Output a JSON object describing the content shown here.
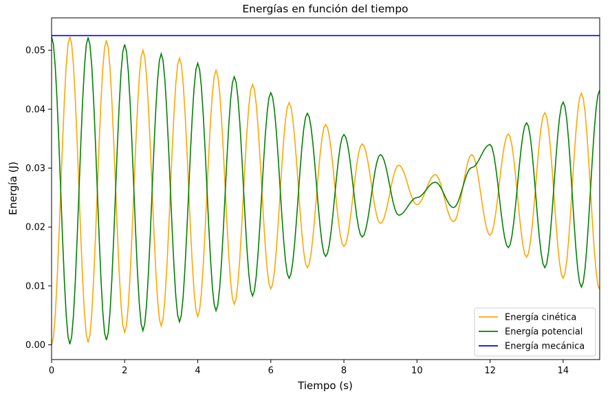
{
  "chart_data": {
    "type": "line",
    "title": "Energías en función del tiempo",
    "xlabel": "Tiempo (s)",
    "ylabel": "Energía (J)",
    "xlim": [
      0,
      15
    ],
    "ylim": [
      -0.0025,
      0.0555
    ],
    "x_ticks": [
      0,
      2,
      4,
      6,
      8,
      10,
      12,
      14
    ],
    "x_tick_labels": [
      "0",
      "2",
      "4",
      "6",
      "8",
      "10",
      "12",
      "14"
    ],
    "y_ticks": [
      0.0,
      0.01,
      0.02,
      0.03,
      0.04,
      0.05
    ],
    "y_tick_labels": [
      "0.00",
      "0.01",
      "0.02",
      "0.03",
      "0.04",
      "0.05"
    ],
    "grid": false,
    "legend_position": "lower-right",
    "x": [
      0,
      0.5,
      1.0,
      1.5,
      2.0,
      2.5,
      3.0,
      3.5,
      4.0,
      4.5,
      5.0,
      5.5,
      6.0,
      6.5,
      7.0,
      7.5,
      8.0,
      8.5,
      9.0,
      9.5,
      10.0,
      10.5,
      11.0,
      11.5,
      12.0,
      12.5,
      13.0,
      13.5,
      14.0,
      14.5,
      15.0
    ],
    "series": [
      {
        "name": "Energía cinética",
        "color": "#ffa500",
        "values": [
          0.0,
          0.0523,
          0.0004,
          0.0517,
          0.0021,
          0.05,
          0.0032,
          0.0487,
          0.0048,
          0.0466,
          0.0069,
          0.0442,
          0.0095,
          0.0411,
          0.0131,
          0.0374,
          0.0167,
          0.0341,
          0.0206,
          0.0305,
          0.0238,
          0.0289,
          0.0209,
          0.0323,
          0.0186,
          0.0358,
          0.0149,
          0.0394,
          0.0113,
          0.0427,
          0.0094
        ]
      },
      {
        "name": "Energía potencial",
        "color": "#008000",
        "values": [
          0.0523,
          0.0001,
          0.0522,
          0.0008,
          0.051,
          0.0024,
          0.0494,
          0.0039,
          0.0478,
          0.0058,
          0.0455,
          0.0083,
          0.0428,
          0.0113,
          0.0393,
          0.015,
          0.0357,
          0.0183,
          0.0323,
          0.022,
          0.025,
          0.0276,
          0.0233,
          0.0301,
          0.034,
          0.0165,
          0.0377,
          0.0131,
          0.0412,
          0.0098,
          0.0432
        ]
      },
      {
        "name": "Energía mecánica",
        "color": "#0000ff",
        "values": [
          0.0525,
          0.0525,
          0.0525,
          0.0525,
          0.0525,
          0.0525,
          0.0525,
          0.0525,
          0.0525,
          0.0525,
          0.0525,
          0.0525,
          0.0525,
          0.0525,
          0.0525,
          0.0525,
          0.0525,
          0.0525,
          0.0525,
          0.0525,
          0.0525,
          0.0525,
          0.0525,
          0.0525,
          0.0525,
          0.0525,
          0.0525,
          0.0525,
          0.0525,
          0.0525,
          0.0525
        ]
      }
    ]
  }
}
